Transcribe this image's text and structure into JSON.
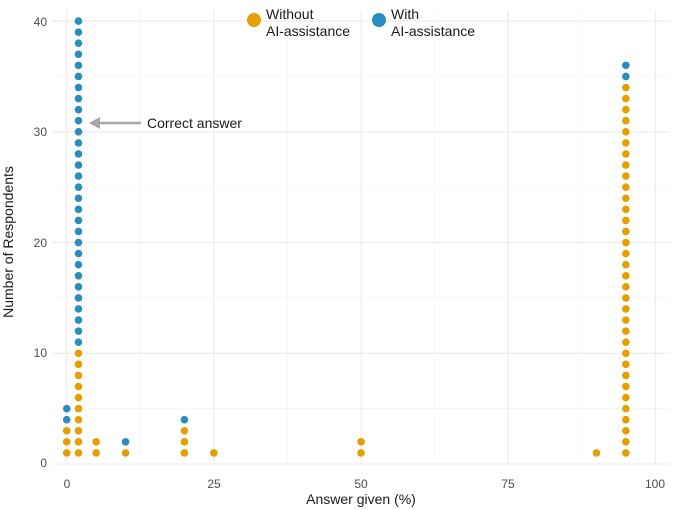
{
  "chart_data": {
    "type": "scatter",
    "xlabel": "Answer given (%)",
    "ylabel": "Number of Respondents",
    "xlim": [
      -2.5,
      102.5
    ],
    "ylim": [
      0,
      41
    ],
    "xticks": [
      0,
      25,
      50,
      75,
      100
    ],
    "yticks": [
      0,
      10,
      20,
      30,
      40
    ],
    "tick_labels": {
      "x": [
        "0",
        "25",
        "50",
        "75",
        "100"
      ],
      "y": [
        "0",
        "10",
        "20",
        "30",
        "40"
      ]
    },
    "grid": true,
    "legend": {
      "position": "top",
      "entries": [
        {
          "line1": "Without",
          "line2": "AI-assistance"
        },
        {
          "line1": "With",
          "line2": "AI-assistance"
        }
      ]
    },
    "annotation": {
      "text": "Correct answer",
      "x": 2,
      "y": 31
    },
    "series": [
      {
        "name": "Without AI-assistance",
        "color": "#E69F00",
        "points": [
          {
            "x": 0,
            "count": 3
          },
          {
            "x": 2,
            "count": 10
          },
          {
            "x": 5,
            "count": 2
          },
          {
            "x": 10,
            "count": 1
          },
          {
            "x": 20,
            "count": 3
          },
          {
            "x": 25,
            "count": 1
          },
          {
            "x": 50,
            "count": 2
          },
          {
            "x": 90,
            "count": 1
          },
          {
            "x": 95,
            "count": 34
          }
        ]
      },
      {
        "name": "With AI-assistance",
        "color": "#2B8CBE",
        "points": [
          {
            "x": 0,
            "count": 2
          },
          {
            "x": 2,
            "count": 30
          },
          {
            "x": 10,
            "count": 1
          },
          {
            "x": 20,
            "count": 1
          },
          {
            "x": 95,
            "count": 2
          }
        ]
      }
    ]
  }
}
